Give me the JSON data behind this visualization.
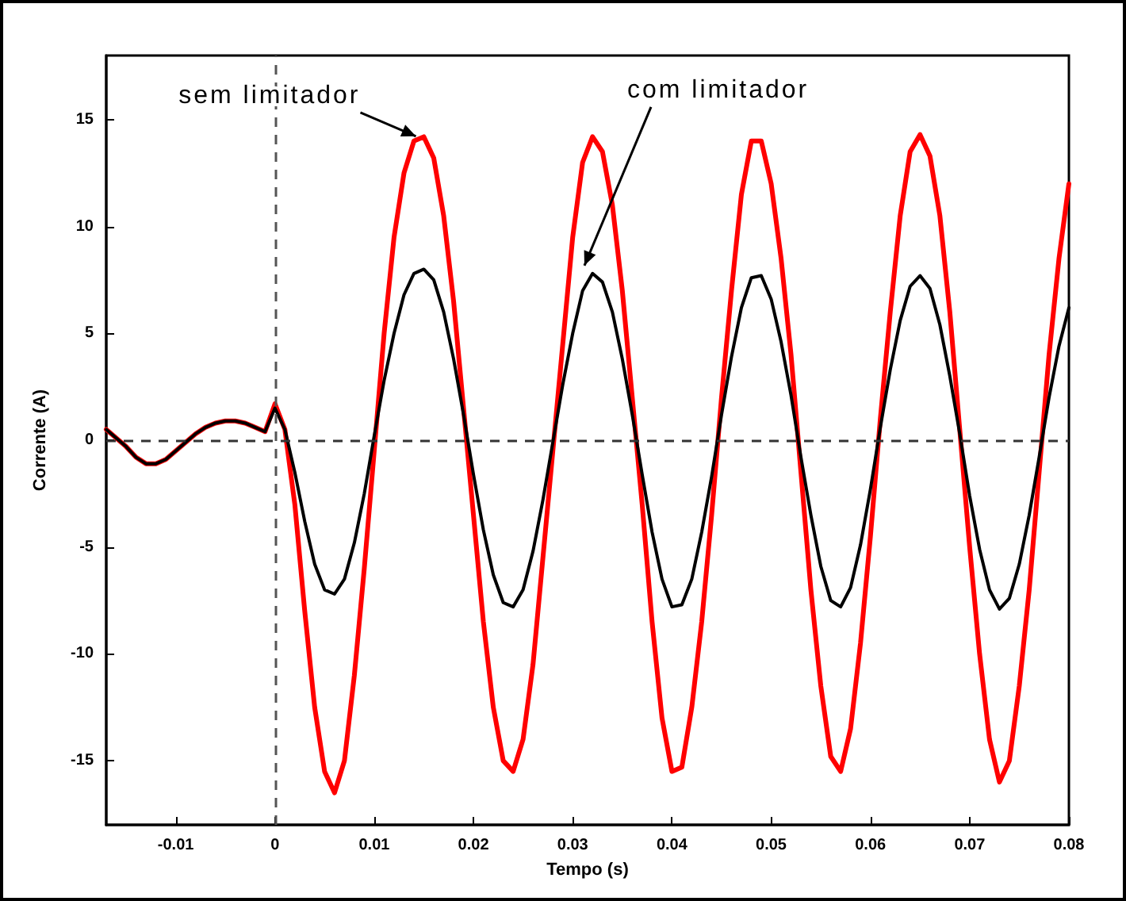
{
  "chart_data": {
    "type": "line",
    "xlabel": "Tempo (s)",
    "ylabel": "Corrente (A)",
    "xlim": [
      -0.017,
      0.08
    ],
    "xticks": [
      -0.01,
      0,
      0.01,
      0.02,
      0.03,
      0.04,
      0.05,
      0.06,
      0.07,
      0.08
    ],
    "ylim": [
      -18,
      18
    ],
    "yticks": [
      -15,
      -10,
      -5,
      0,
      5,
      10,
      15
    ],
    "grid": false,
    "marker": "none",
    "line_style": "solid",
    "x": [
      -0.017,
      -0.016,
      -0.015,
      -0.014,
      -0.013,
      -0.012,
      -0.011,
      -0.01,
      -0.009,
      -0.008,
      -0.007,
      -0.006,
      -0.005,
      -0.004,
      -0.003,
      -0.002,
      -0.001,
      0,
      0.001,
      0.002,
      0.003,
      0.004,
      0.005,
      0.006,
      0.007,
      0.008,
      0.009,
      0.01,
      0.011,
      0.012,
      0.013,
      0.014,
      0.015,
      0.016,
      0.017,
      0.018,
      0.019,
      0.02,
      0.021,
      0.022,
      0.023,
      0.024,
      0.025,
      0.026,
      0.027,
      0.028,
      0.029,
      0.03,
      0.031,
      0.032,
      0.033,
      0.034,
      0.035,
      0.036,
      0.037,
      0.038,
      0.039,
      0.04,
      0.041,
      0.042,
      0.043,
      0.044,
      0.045,
      0.046,
      0.047,
      0.048,
      0.049,
      0.05,
      0.051,
      0.052,
      0.053,
      0.054,
      0.055,
      0.056,
      0.057,
      0.058,
      0.059,
      0.06,
      0.061,
      0.062,
      0.063,
      0.064,
      0.065,
      0.066,
      0.067,
      0.068,
      0.069,
      0.07,
      0.071,
      0.072,
      0.073,
      0.074,
      0.075,
      0.076,
      0.077,
      0.078,
      0.079,
      0.08
    ],
    "series": [
      {
        "color": "#ff0000",
        "values": [
          0.5,
          0.1,
          -0.3,
          -0.8,
          -1.1,
          -1.1,
          -0.9,
          -0.5,
          -0.1,
          0.3,
          0.6,
          0.8,
          0.9,
          0.9,
          0.8,
          0.6,
          0.4,
          1.7,
          0.5,
          -3,
          -8,
          -12.5,
          -15.5,
          -16.5,
          -15,
          -11,
          -6,
          -0.5,
          5,
          9.5,
          12.5,
          14,
          14.2,
          13.2,
          10.5,
          6.5,
          1.5,
          -3.5,
          -8.5,
          -12.5,
          -15,
          -15.5,
          -14,
          -10.5,
          -5.5,
          -0.5,
          4.5,
          9.5,
          13,
          14.2,
          13.5,
          11,
          7,
          2,
          -3,
          -8.5,
          -13,
          -15.5,
          -15.3,
          -12.5,
          -8.5,
          -3.5,
          2,
          7,
          11.5,
          14,
          14,
          12,
          8.5,
          4,
          -1.5,
          -7,
          -11.5,
          -14.8,
          -15.5,
          -13.5,
          -9.5,
          -4.5,
          1,
          6,
          10.5,
          13.5,
          14.3,
          13.3,
          10.5,
          6,
          0.5,
          -5,
          -10,
          -14,
          -16,
          -15,
          -11.5,
          -7,
          -1.5,
          4,
          8.5,
          12
        ]
      },
      {
        "color": "#000000",
        "values": [
          0.5,
          0.1,
          -0.3,
          -0.8,
          -1.1,
          -1.1,
          -0.9,
          -0.5,
          -0.1,
          0.3,
          0.6,
          0.8,
          0.9,
          0.9,
          0.8,
          0.6,
          0.4,
          1.5,
          0.5,
          -1.5,
          -3.8,
          -5.8,
          -7,
          -7.2,
          -6.5,
          -4.8,
          -2.5,
          0.2,
          2.8,
          5,
          6.8,
          7.8,
          8,
          7.5,
          6,
          3.8,
          1.2,
          -1.6,
          -4.2,
          -6.3,
          -7.6,
          -7.8,
          -7,
          -5.2,
          -2.8,
          -0.1,
          2.6,
          5,
          7,
          7.8,
          7.4,
          6,
          3.8,
          1.2,
          -1.6,
          -4.3,
          -6.5,
          -7.8,
          -7.7,
          -6.5,
          -4.3,
          -1.7,
          1.2,
          3.9,
          6.2,
          7.6,
          7.7,
          6.6,
          4.6,
          2.1,
          -0.8,
          -3.5,
          -5.9,
          -7.5,
          -7.8,
          -6.9,
          -4.9,
          -2.3,
          0.6,
          3.3,
          5.6,
          7.2,
          7.7,
          7.1,
          5.4,
          3,
          0.3,
          -2.6,
          -5.1,
          -7,
          -7.9,
          -7.4,
          -5.8,
          -3.5,
          -0.8,
          2,
          4.4,
          6.2
        ]
      }
    ],
    "ref_lines": [
      {
        "axis": "y",
        "value": 0,
        "color": "#333333",
        "line_style": "dashed"
      },
      {
        "axis": "x",
        "value": 0,
        "color": "#555555",
        "line_style": "dashed"
      }
    ],
    "annotations": [
      {
        "text": "sem limitador",
        "x": 0.015,
        "y": 14
      },
      {
        "text": "com limitador",
        "x": 0.0315,
        "y": 7.8
      }
    ]
  }
}
